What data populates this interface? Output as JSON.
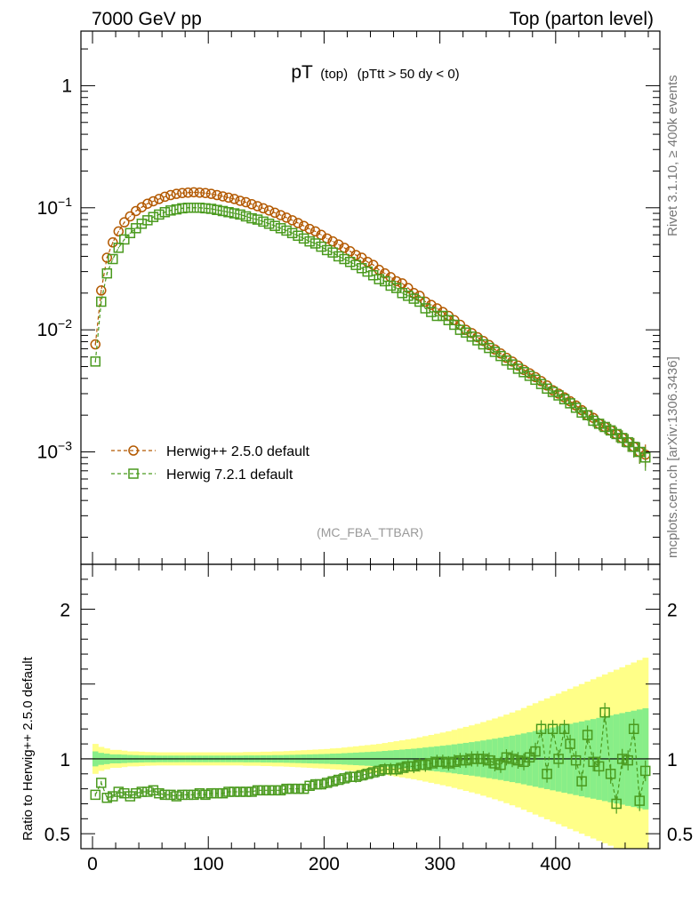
{
  "chart_data": {
    "type": "scatter",
    "header_left": "7000 GeV pp",
    "header_right": "Top (parton level)",
    "title_main": "pT",
    "title_sub": "(top)",
    "title_cut": "(pTtt > 50 dy < 0)",
    "watermark": "(MC_FBA_TTBAR)",
    "side_label_top": "Rivet 3.1.10, ≥ 400k events",
    "side_label_bottom": "mcplots.cern.ch [arXiv:1306.3436]",
    "ratio_ylabel": "Ratio to Herwig++ 2.5.0 default",
    "xlim": [
      -10,
      490
    ],
    "ylim_top": [
      0.00012,
      2.8
    ],
    "ylim_ratio": [
      0.4,
      2.3
    ],
    "x_ticks": [
      0,
      100,
      200,
      300,
      400
    ],
    "x_tick_labels": [
      "0",
      "100",
      "200",
      "300",
      "400"
    ],
    "y_ticks_top": [
      0.001,
      0.01,
      0.1,
      1
    ],
    "y_tick_labels_top": [
      "10^-3",
      "10^-2",
      "10^-1",
      "1"
    ],
    "y_ticks_ratio": [
      0.5,
      1,
      2
    ],
    "y_tick_labels_ratio": [
      "0.5",
      "1",
      "2"
    ],
    "legend_position": "bottom-left",
    "x": [
      2.5,
      7.5,
      12.5,
      17.5,
      22.5,
      27.5,
      32.5,
      37.5,
      42.5,
      47.5,
      52.5,
      57.5,
      62.5,
      67.5,
      72.5,
      77.5,
      82.5,
      87.5,
      92.5,
      97.5,
      102.5,
      107.5,
      112.5,
      117.5,
      122.5,
      127.5,
      132.5,
      137.5,
      142.5,
      147.5,
      152.5,
      157.5,
      162.5,
      167.5,
      172.5,
      177.5,
      182.5,
      187.5,
      192.5,
      197.5,
      202.5,
      207.5,
      212.5,
      217.5,
      222.5,
      227.5,
      232.5,
      237.5,
      242.5,
      247.5,
      252.5,
      257.5,
      262.5,
      267.5,
      272.5,
      277.5,
      282.5,
      287.5,
      292.5,
      297.5,
      302.5,
      307.5,
      312.5,
      317.5,
      322.5,
      327.5,
      332.5,
      337.5,
      342.5,
      347.5,
      352.5,
      357.5,
      362.5,
      367.5,
      372.5,
      377.5,
      382.5,
      387.5,
      392.5,
      397.5,
      402.5,
      407.5,
      412.5,
      417.5,
      422.5,
      427.5,
      432.5,
      437.5,
      442.5,
      447.5,
      452.5,
      457.5,
      462.5,
      467.5,
      472.5,
      477.5
    ],
    "series": [
      {
        "name": "Herwig++ 2.5.0 default",
        "color": "#b35900",
        "marker": "circle",
        "values": [
          0.0076,
          0.021,
          0.039,
          0.052,
          0.064,
          0.076,
          0.085,
          0.094,
          0.101,
          0.108,
          0.113,
          0.118,
          0.123,
          0.127,
          0.13,
          0.132,
          0.133,
          0.134,
          0.133,
          0.132,
          0.13,
          0.127,
          0.124,
          0.121,
          0.118,
          0.114,
          0.111,
          0.107,
          0.103,
          0.099,
          0.095,
          0.091,
          0.087,
          0.083,
          0.079,
          0.075,
          0.071,
          0.067,
          0.064,
          0.06,
          0.056,
          0.053,
          0.05,
          0.047,
          0.044,
          0.041,
          0.039,
          0.036,
          0.034,
          0.031,
          0.029,
          0.027,
          0.025,
          0.024,
          0.022,
          0.02,
          0.019,
          0.017,
          0.016,
          0.015,
          0.014,
          0.013,
          0.012,
          0.011,
          0.01,
          0.0094,
          0.0087,
          0.0081,
          0.0075,
          0.0069,
          0.0064,
          0.0059,
          0.0055,
          0.0051,
          0.0047,
          0.0044,
          0.0041,
          0.0038,
          0.0035,
          0.0032,
          0.003,
          0.0028,
          0.0026,
          0.0024,
          0.0022,
          0.002,
          0.0019,
          0.0017,
          0.0016,
          0.0015,
          0.0014,
          0.0013,
          0.0012,
          0.0011,
          0.001,
          0.00095
        ],
        "errors": [
          0.00015,
          0.0003,
          0.0005,
          0.0006,
          0.0007,
          0.0008,
          0.0009,
          0.001,
          0.001,
          0.001,
          0.001,
          0.001,
          0.001,
          0.001,
          0.001,
          0.001,
          0.001,
          0.001,
          0.001,
          0.001,
          0.001,
          0.001,
          0.001,
          0.001,
          0.001,
          0.001,
          0.001,
          0.0009,
          0.0009,
          0.0009,
          0.0008,
          0.0008,
          0.0008,
          0.0007,
          0.0007,
          0.0007,
          0.0006,
          0.0006,
          0.0006,
          0.0005,
          0.0005,
          0.0005,
          0.0004,
          0.0004,
          0.0004,
          0.0004,
          0.0003,
          0.0003,
          0.0003,
          0.0003,
          0.0003,
          0.0002,
          0.0002,
          0.0002,
          0.0002,
          0.0002,
          0.0002,
          0.0002,
          0.0002,
          0.0001,
          0.0001,
          0.0001,
          0.0001,
          0.0001,
          0.0001,
          0.0001,
          0.0001,
          0.0001,
          0.0001,
          0.0001,
          0.0001,
          0.0001,
          0.0001,
          0.0001,
          0.0001,
          0.0001,
          0.0001,
          0.0001,
          0.0001,
          0.0001,
          0.0002,
          0.0002,
          0.0002,
          0.0002,
          0.0002,
          0.0002,
          0.0002,
          0.0002,
          0.0002,
          0.0002,
          0.0002,
          0.0002,
          0.0002,
          0.0002,
          0.0002,
          0.0002
        ]
      },
      {
        "name": "Herwig 7.2.1 default",
        "color": "#4a9a1e",
        "marker": "square",
        "values": [
          0.0055,
          0.017,
          0.029,
          0.038,
          0.047,
          0.055,
          0.062,
          0.068,
          0.074,
          0.079,
          0.084,
          0.088,
          0.092,
          0.095,
          0.097,
          0.099,
          0.1,
          0.1,
          0.1,
          0.099,
          0.098,
          0.096,
          0.094,
          0.092,
          0.09,
          0.088,
          0.085,
          0.082,
          0.08,
          0.077,
          0.074,
          0.071,
          0.068,
          0.065,
          0.062,
          0.059,
          0.056,
          0.053,
          0.051,
          0.048,
          0.045,
          0.043,
          0.04,
          0.038,
          0.036,
          0.034,
          0.032,
          0.03,
          0.028,
          0.026,
          0.025,
          0.023,
          0.022,
          0.02,
          0.019,
          0.018,
          0.017,
          0.015,
          0.014,
          0.013,
          0.013,
          0.012,
          0.011,
          0.01,
          0.0095,
          0.0088,
          0.0082,
          0.0076,
          0.0071,
          0.0066,
          0.0061,
          0.0056,
          0.0052,
          0.0048,
          0.0045,
          0.0042,
          0.0039,
          0.0036,
          0.0033,
          0.0031,
          0.0029,
          0.0027,
          0.0025,
          0.0023,
          0.0021,
          0.002,
          0.0018,
          0.0017,
          0.0016,
          0.0015,
          0.0014,
          0.0013,
          0.0012,
          0.0011,
          0.001,
          0.0009
        ],
        "errors": [
          0.0001,
          0.0003,
          0.0004,
          0.0005,
          0.0006,
          0.0007,
          0.0007,
          0.0008,
          0.0008,
          0.0009,
          0.0009,
          0.0009,
          0.0009,
          0.0009,
          0.0009,
          0.0009,
          0.0009,
          0.0009,
          0.0009,
          0.0009,
          0.0009,
          0.0009,
          0.0009,
          0.0009,
          0.0009,
          0.0009,
          0.0008,
          0.0008,
          0.0008,
          0.0008,
          0.0007,
          0.0007,
          0.0007,
          0.0007,
          0.0006,
          0.0006,
          0.0006,
          0.0005,
          0.0005,
          0.0005,
          0.0005,
          0.0004,
          0.0004,
          0.0004,
          0.0004,
          0.0003,
          0.0003,
          0.0003,
          0.0003,
          0.0003,
          0.0003,
          0.0002,
          0.0002,
          0.0002,
          0.0002,
          0.0002,
          0.0002,
          0.0002,
          0.0001,
          0.0001,
          0.0001,
          0.0001,
          0.0001,
          0.0001,
          0.0001,
          0.0001,
          0.0001,
          0.0001,
          0.0001,
          0.0001,
          0.0001,
          0.0001,
          0.0001,
          0.0001,
          0.0001,
          0.0001,
          0.0001,
          0.0001,
          0.0001,
          0.0001,
          0.0001,
          0.0002,
          0.0002,
          0.0002,
          0.0002,
          0.0002,
          0.0002,
          0.0002,
          0.0002,
          0.0002,
          0.0002,
          0.0002,
          0.0002,
          0.0002,
          0.0002,
          0.0002
        ]
      }
    ],
    "ratio": {
      "reference": "Herwig++ 2.5.0 default",
      "values": [
        0.76,
        0.84,
        0.74,
        0.75,
        0.78,
        0.77,
        0.75,
        0.77,
        0.78,
        0.78,
        0.79,
        0.77,
        0.76,
        0.76,
        0.75,
        0.76,
        0.76,
        0.76,
        0.77,
        0.76,
        0.77,
        0.77,
        0.77,
        0.78,
        0.78,
        0.78,
        0.78,
        0.78,
        0.79,
        0.79,
        0.79,
        0.79,
        0.79,
        0.8,
        0.8,
        0.8,
        0.8,
        0.82,
        0.83,
        0.83,
        0.84,
        0.85,
        0.86,
        0.87,
        0.88,
        0.88,
        0.89,
        0.9,
        0.91,
        0.92,
        0.93,
        0.93,
        0.93,
        0.94,
        0.95,
        0.95,
        0.96,
        0.96,
        0.97,
        0.98,
        0.98,
        0.97,
        0.98,
        0.99,
        0.99,
        1.0,
        1.0,
        1.0,
        0.99,
        0.97,
        0.96,
        1.01,
        1.0,
        0.99,
        0.98,
        1.01,
        1.05,
        1.2,
        0.9,
        1.2,
        1.0,
        1.2,
        1.1,
        0.99,
        0.85,
        1.16,
        0.98,
        0.95,
        1.31,
        0.9,
        0.7,
        1.0,
        0.99,
        1.2,
        0.72,
        0.92
      ],
      "band_inner": [
        0.05,
        0.04,
        0.035,
        0.03,
        0.03,
        0.028,
        0.026,
        0.025,
        0.024,
        0.023,
        0.023,
        0.022,
        0.022,
        0.022,
        0.022,
        0.022,
        0.022,
        0.022,
        0.022,
        0.022,
        0.022,
        0.022,
        0.022,
        0.022,
        0.022,
        0.022,
        0.023,
        0.023,
        0.023,
        0.024,
        0.024,
        0.025,
        0.025,
        0.026,
        0.027,
        0.028,
        0.029,
        0.03,
        0.031,
        0.032,
        0.033,
        0.035,
        0.036,
        0.038,
        0.04,
        0.042,
        0.044,
        0.046,
        0.048,
        0.05,
        0.053,
        0.056,
        0.059,
        0.062,
        0.065,
        0.068,
        0.072,
        0.076,
        0.08,
        0.084,
        0.088,
        0.092,
        0.097,
        0.102,
        0.107,
        0.112,
        0.117,
        0.123,
        0.129,
        0.135,
        0.141,
        0.148,
        0.155,
        0.162,
        0.17,
        0.178,
        0.186,
        0.194,
        0.202,
        0.21,
        0.218,
        0.226,
        0.234,
        0.242,
        0.25,
        0.258,
        0.266,
        0.274,
        0.282,
        0.29,
        0.298,
        0.306,
        0.314,
        0.322,
        0.33,
        0.338
      ],
      "band_outer": [
        0.1,
        0.08,
        0.07,
        0.06,
        0.06,
        0.055,
        0.05,
        0.05,
        0.048,
        0.046,
        0.045,
        0.044,
        0.044,
        0.044,
        0.044,
        0.044,
        0.044,
        0.044,
        0.044,
        0.044,
        0.044,
        0.044,
        0.044,
        0.044,
        0.044,
        0.044,
        0.046,
        0.046,
        0.046,
        0.048,
        0.048,
        0.05,
        0.05,
        0.052,
        0.054,
        0.056,
        0.058,
        0.06,
        0.062,
        0.064,
        0.066,
        0.07,
        0.072,
        0.076,
        0.08,
        0.084,
        0.088,
        0.092,
        0.096,
        0.1,
        0.106,
        0.112,
        0.118,
        0.124,
        0.13,
        0.136,
        0.144,
        0.152,
        0.16,
        0.168,
        0.176,
        0.184,
        0.194,
        0.204,
        0.214,
        0.224,
        0.234,
        0.246,
        0.258,
        0.27,
        0.282,
        0.296,
        0.31,
        0.324,
        0.34,
        0.356,
        0.372,
        0.388,
        0.404,
        0.42,
        0.436,
        0.452,
        0.468,
        0.484,
        0.5,
        0.516,
        0.532,
        0.548,
        0.564,
        0.58,
        0.596,
        0.612,
        0.628,
        0.644,
        0.66,
        0.676
      ]
    }
  }
}
